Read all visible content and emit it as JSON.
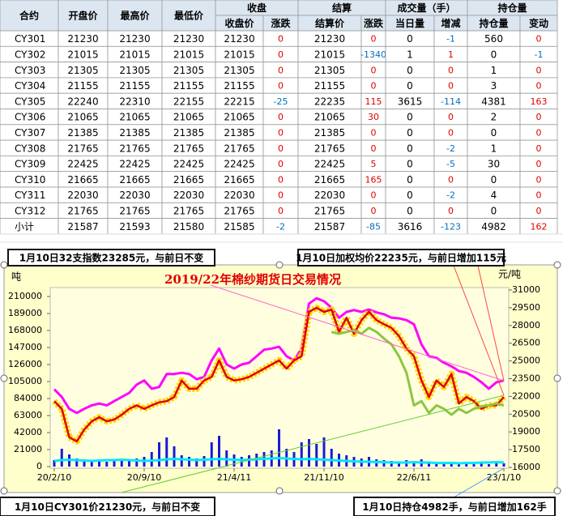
{
  "table": {
    "header_top": [
      "合约",
      "开盘价",
      "最高价",
      "最低价",
      "收盘",
      "结算",
      "成交量（手）",
      "持仓量"
    ],
    "header_sub": [
      "收盘价",
      "涨跌",
      "结算价",
      "涨跌",
      "当日量",
      "增减",
      "持仓量",
      "变动"
    ],
    "rows": [
      [
        "CY301",
        21230,
        21230,
        21230,
        21230,
        0,
        21230,
        0,
        0,
        -1,
        560,
        0
      ],
      [
        "CY302",
        21015,
        21015,
        21015,
        21015,
        0,
        21015,
        -1340,
        1,
        1,
        0,
        -1
      ],
      [
        "CY303",
        21305,
        21305,
        21305,
        21305,
        0,
        21305,
        0,
        0,
        0,
        1,
        0
      ],
      [
        "CY304",
        21155,
        21155,
        21155,
        21155,
        0,
        21155,
        0,
        0,
        0,
        3,
        0
      ],
      [
        "CY305",
        22240,
        22310,
        22155,
        22215,
        -25,
        22235,
        115,
        3615,
        -114,
        4381,
        163
      ],
      [
        "CY306",
        21065,
        21065,
        21065,
        21065,
        0,
        21065,
        30,
        0,
        0,
        2,
        0
      ],
      [
        "CY307",
        21385,
        21385,
        21385,
        21385,
        0,
        21385,
        0,
        0,
        0,
        0,
        0
      ],
      [
        "CY308",
        21765,
        21765,
        21765,
        21765,
        0,
        21765,
        0,
        0,
        -2,
        1,
        0
      ],
      [
        "CY309",
        22425,
        22425,
        22425,
        22425,
        0,
        22425,
        5,
        0,
        -5,
        30,
        0
      ],
      [
        "CY310",
        21665,
        21665,
        21665,
        21665,
        0,
        21665,
        165,
        0,
        0,
        0,
        0
      ],
      [
        "CY311",
        22030,
        22030,
        22030,
        22030,
        0,
        22030,
        0,
        0,
        -2,
        4,
        0
      ],
      [
        "CY312",
        21765,
        21765,
        21765,
        21765,
        0,
        21765,
        0,
        0,
        0,
        0,
        0
      ],
      [
        "小计",
        21587,
        21593,
        21580,
        21585,
        -2,
        21587,
        -85,
        3616,
        -123,
        4982,
        162
      ]
    ]
  },
  "annotations": [
    "1月10日32支指数23285元，与前日不变",
    "1月10日加权均价22235元，与前日增加115元",
    "1月10日CY301价21230元，与前日不变",
    "1月10日持仓4982手，与前日增加162手"
  ],
  "chart_data": {
    "type": "combo",
    "title": "2019/22年棉纱期货日交易情况",
    "y_label": "吨",
    "y2_label": "元/吨",
    "xlim": [
      0,
      60
    ],
    "xticks": [
      {
        "value": 0,
        "label": "20/2/10"
      },
      {
        "value": 12,
        "label": "20/9/10"
      },
      {
        "value": 24,
        "label": "21/4/11"
      },
      {
        "value": 36,
        "label": "21/11/10"
      },
      {
        "value": 48,
        "label": "22/6/11"
      },
      {
        "value": 60,
        "label": "23/1/10"
      }
    ],
    "ylim": [
      0,
      210000
    ],
    "yticks": [
      0,
      21000,
      42000,
      63000,
      84000,
      105000,
      126000,
      147000,
      168000,
      189000,
      210000
    ],
    "y2lim": [
      16000,
      31000
    ],
    "y2ticks": [
      16000,
      17500,
      19000,
      20500,
      22000,
      23500,
      25000,
      26500,
      28000,
      29500,
      31000
    ],
    "series": [
      {
        "type": "bar",
        "color": "#1a1ad6",
        "values": [
          8000,
          22000,
          15000,
          10000,
          9000,
          8000,
          7000,
          6000,
          7000,
          8000,
          9000,
          10000,
          12000,
          18000,
          30000,
          36000,
          25000,
          14000,
          12000,
          10000,
          13000,
          30000,
          38000,
          20000,
          15000,
          12000,
          14000,
          16000,
          18000,
          20000,
          46000,
          22000,
          18000,
          30000,
          34000,
          28000,
          36000,
          22000,
          16000,
          14000,
          12000,
          10000,
          12000,
          9000,
          8000,
          7000,
          6000,
          8000,
          7000,
          9000,
          6000,
          5000,
          4000,
          5000,
          4000,
          3000,
          3000,
          4000,
          3000,
          5000,
          4000
        ]
      },
      {
        "type": "line",
        "color": "#00e5ff",
        "values": [
          7000,
          8000,
          8500,
          8000,
          7500,
          7000,
          7500,
          8000,
          8000,
          8500,
          8000,
          7500,
          7000,
          7500,
          8000,
          9000,
          9500,
          9000,
          8500,
          8000,
          8500,
          9000,
          9500,
          9000,
          8500,
          8000,
          8500,
          9000,
          9500,
          10000,
          10500,
          10000,
          9500,
          9000,
          9500,
          9000,
          8500,
          8000,
          7500,
          7000,
          6500,
          6000,
          6000,
          5500,
          5500,
          5000,
          5000,
          5000,
          5500,
          5000,
          5000,
          4500,
          4500,
          4500,
          4000,
          4500,
          4500,
          5000,
          5000,
          5500,
          5000
        ]
      },
      {
        "type": "line",
        "axis": "y2",
        "color": "#ff00ff",
        "values": [
          22600,
          21950,
          20950,
          20600,
          20950,
          21250,
          21400,
          21250,
          21600,
          21950,
          22300,
          23000,
          23350,
          22650,
          22800,
          23900,
          23900,
          24000,
          23900,
          23450,
          23650,
          25050,
          26050,
          24700,
          24350,
          24700,
          24850,
          25400,
          25950,
          26050,
          26200,
          25400,
          25050,
          26050,
          29850,
          30300,
          30050,
          29500,
          28650,
          29150,
          29300,
          29150,
          29350,
          29100,
          28950,
          28650,
          28600,
          28450,
          28100,
          26400,
          25400,
          25250,
          24850,
          24550,
          24150,
          24000,
          23650,
          23200,
          22650,
          23200,
          23350
        ]
      },
      {
        "type": "line",
        "axis": "y2",
        "color": "#e00000",
        "marker_color": "#ffd700",
        "values": [
          21600,
          20950,
          18550,
          18200,
          19200,
          19900,
          20250,
          19900,
          20050,
          20450,
          20950,
          21250,
          20950,
          21250,
          21500,
          21600,
          21950,
          23350,
          22650,
          22650,
          23350,
          23650,
          25050,
          23650,
          23350,
          23450,
          23650,
          24000,
          24350,
          24700,
          25050,
          24350,
          25050,
          25400,
          29150,
          29500,
          29150,
          29350,
          27450,
          28650,
          27300,
          28450,
          29150,
          28450,
          28100,
          27800,
          27100,
          26050,
          25400,
          23350,
          21950,
          23350,
          22800,
          23900,
          21400,
          21950,
          21600,
          20950,
          21250,
          21250,
          21950
        ]
      },
      {
        "type": "line",
        "axis": "y2",
        "color": "#8dc63f",
        "values": [
          null,
          null,
          null,
          null,
          null,
          null,
          null,
          null,
          null,
          null,
          null,
          null,
          null,
          null,
          null,
          null,
          null,
          null,
          null,
          null,
          null,
          null,
          null,
          null,
          null,
          null,
          null,
          null,
          null,
          null,
          null,
          null,
          null,
          null,
          null,
          null,
          null,
          27450,
          27300,
          27450,
          27600,
          27300,
          27800,
          27450,
          26900,
          26400,
          25400,
          24000,
          21250,
          21600,
          20600,
          21250,
          20950,
          20450,
          20950,
          20600,
          20950,
          21150,
          21250,
          21400,
          21250
        ]
      }
    ]
  }
}
